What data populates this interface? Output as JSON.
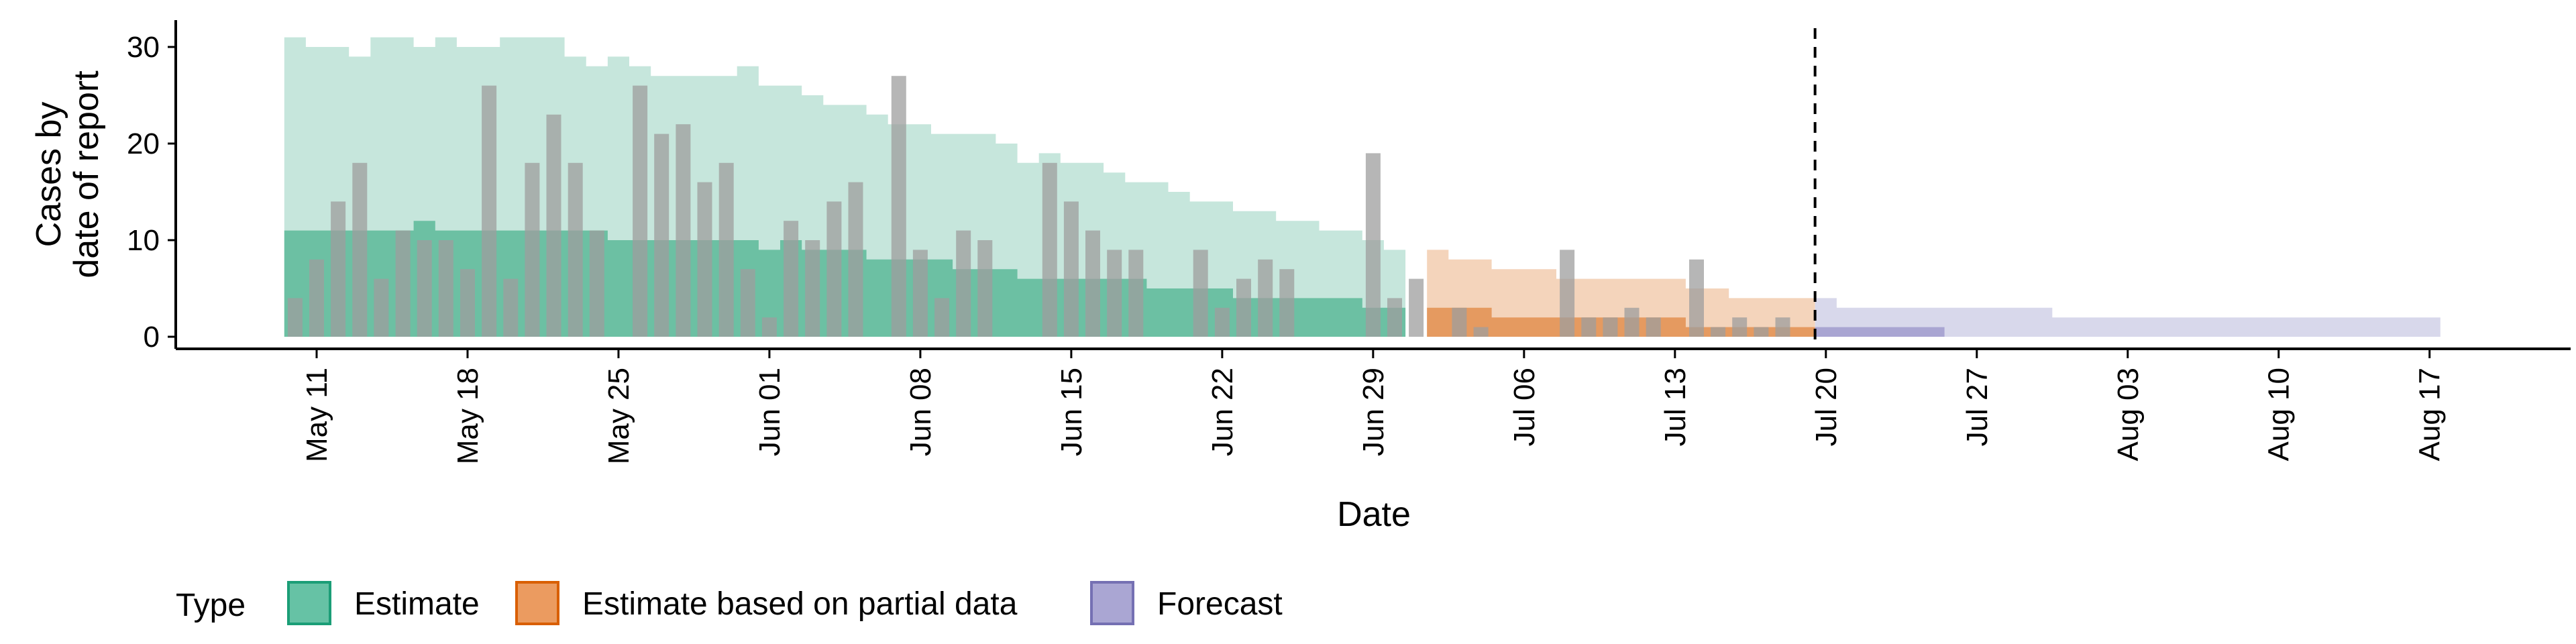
{
  "chart_data": {
    "type": "area",
    "xlabel": "Date",
    "ylabel_lines": [
      "Cases by",
      "date of report"
    ],
    "ylim": [
      0,
      32
    ],
    "yticks": [
      0,
      10,
      20,
      30
    ],
    "xtick_labels": [
      "May 11",
      "May 18",
      "May 25",
      "Jun 01",
      "Jun 08",
      "Jun 15",
      "Jun 22",
      "Jun 29",
      "Jul 06",
      "Jul 13",
      "Jul 20",
      "Jul 27",
      "Aug 03",
      "Aug 10",
      "Aug 17"
    ],
    "forecast_date": "2020-07-19",
    "legend": {
      "title": "Type",
      "position": "bottom",
      "items": [
        {
          "label": "Estimate",
          "fill": "#66c2a5",
          "stroke": "#1b9e77"
        },
        {
          "label": "Estimate based on partial data",
          "fill": "#eb9b60",
          "stroke": "#d95f02"
        },
        {
          "label": "Forecast",
          "fill": "#aaa6d3",
          "stroke": "#7570b3"
        }
      ]
    },
    "colors": {
      "estimate_outer": "#c6e6dc",
      "estimate_inner": "#6cc0a3",
      "partial_outer": "#f4d4bb",
      "partial_inner": "#e59a60",
      "forecast_outer": "#d8d8eb",
      "forecast_inner": "#a9a5d2",
      "bars": "#9e9e9e"
    },
    "bars": {
      "start": "2020-05-10",
      "values": [
        4,
        8,
        14,
        18,
        6,
        11,
        10,
        10,
        7,
        26,
        6,
        18,
        23,
        18,
        11,
        0,
        26,
        21,
        22,
        16,
        18,
        7,
        2,
        12,
        10,
        14,
        16,
        0,
        27,
        9,
        4,
        11,
        10,
        0,
        0,
        18,
        14,
        11,
        9,
        9,
        0,
        0,
        9,
        3,
        6,
        8,
        7,
        0,
        0,
        0,
        19,
        4,
        6,
        0,
        3,
        1,
        0,
        0,
        0,
        9,
        2,
        2,
        3,
        2,
        0,
        8,
        1,
        2,
        1,
        2
      ]
    },
    "series": [
      {
        "name": "Estimate",
        "start": "2020-05-10",
        "upper90": [
          31,
          30,
          30,
          29,
          31,
          31,
          30,
          31,
          30,
          30,
          31,
          31,
          31,
          29,
          28,
          29,
          28,
          27,
          27,
          27,
          27,
          28,
          26,
          26,
          25,
          24,
          24,
          23,
          22,
          22,
          21,
          21,
          21,
          20,
          18,
          19,
          18,
          18,
          17,
          16,
          16,
          15,
          14,
          14,
          13,
          13,
          12,
          12,
          11,
          11,
          10,
          9
        ],
        "lower90": [
          0,
          0,
          0,
          0,
          0,
          1,
          0,
          0,
          0,
          0,
          0,
          0,
          0,
          0,
          1,
          0,
          0,
          0,
          0,
          0,
          1,
          1,
          0,
          0,
          0,
          0,
          0,
          0,
          0,
          0,
          0,
          0,
          0,
          0,
          0,
          0,
          0,
          0,
          0,
          0,
          0,
          0,
          0,
          0,
          0,
          0,
          0,
          0,
          0,
          0,
          0,
          0
        ],
        "upper50": [
          11,
          11,
          11,
          11,
          11,
          11,
          12,
          11,
          11,
          11,
          11,
          11,
          11,
          11,
          11,
          10,
          10,
          10,
          10,
          10,
          10,
          10,
          9,
          10,
          9,
          9,
          9,
          8,
          8,
          8,
          8,
          7,
          7,
          7,
          6,
          6,
          6,
          6,
          6,
          6,
          5,
          5,
          5,
          5,
          4,
          4,
          4,
          4,
          4,
          4,
          3,
          3
        ],
        "lower50": [
          0,
          0,
          0,
          0,
          0,
          0,
          0,
          0,
          0,
          0,
          0,
          0,
          0,
          0,
          0,
          0,
          0,
          0,
          0,
          0,
          0,
          0,
          0,
          0,
          0,
          0,
          0,
          0,
          0,
          0,
          0,
          0,
          0,
          0,
          0,
          0,
          0,
          0,
          0,
          0,
          0,
          0,
          0,
          0,
          0,
          0,
          0,
          0,
          0,
          0,
          0,
          0
        ]
      },
      {
        "name": "Estimate based on partial data",
        "start": "2020-07-02",
        "upper90": [
          9,
          8,
          8,
          7,
          7,
          7,
          6,
          6,
          6,
          6,
          6,
          6,
          5,
          5,
          4,
          4,
          4,
          4
        ],
        "lower90": [
          0,
          0,
          0,
          0,
          0,
          0,
          0,
          0,
          0,
          0,
          0,
          0,
          0,
          0,
          0,
          0,
          0,
          0
        ],
        "upper50": [
          3,
          3,
          3,
          2,
          2,
          2,
          2,
          2,
          2,
          2,
          2,
          2,
          1,
          1,
          1,
          1,
          1,
          1
        ],
        "lower50": [
          0,
          0,
          0,
          0,
          0,
          0,
          0,
          0,
          0,
          0,
          0,
          0,
          0,
          0,
          0,
          0,
          0,
          0
        ]
      },
      {
        "name": "Forecast",
        "start": "2020-07-20",
        "upper90": [
          4,
          3,
          3,
          3,
          3,
          3,
          3,
          3,
          3,
          3,
          3,
          2,
          2,
          2,
          2,
          2,
          2,
          2,
          2,
          2,
          2,
          2,
          2,
          2,
          2,
          2,
          2,
          2,
          2
        ],
        "lower90": [
          0,
          0,
          0,
          0,
          0,
          0,
          0,
          0,
          0,
          0,
          0,
          0,
          0,
          0,
          0,
          0,
          0,
          0,
          0,
          0,
          0,
          0,
          0,
          0,
          0,
          0,
          0,
          0,
          0
        ],
        "upper50": [
          1,
          1,
          1,
          1,
          1,
          1,
          0,
          0,
          0,
          0,
          0,
          0,
          0,
          0,
          0,
          0,
          0,
          0,
          0,
          0,
          0,
          0,
          0,
          0,
          0,
          0,
          0,
          0,
          0
        ],
        "lower50": [
          0,
          0,
          0,
          0,
          0,
          0,
          0,
          0,
          0,
          0,
          0,
          0,
          0,
          0,
          0,
          0,
          0,
          0,
          0,
          0,
          0,
          0,
          0,
          0,
          0,
          0,
          0,
          0,
          0
        ]
      }
    ]
  }
}
